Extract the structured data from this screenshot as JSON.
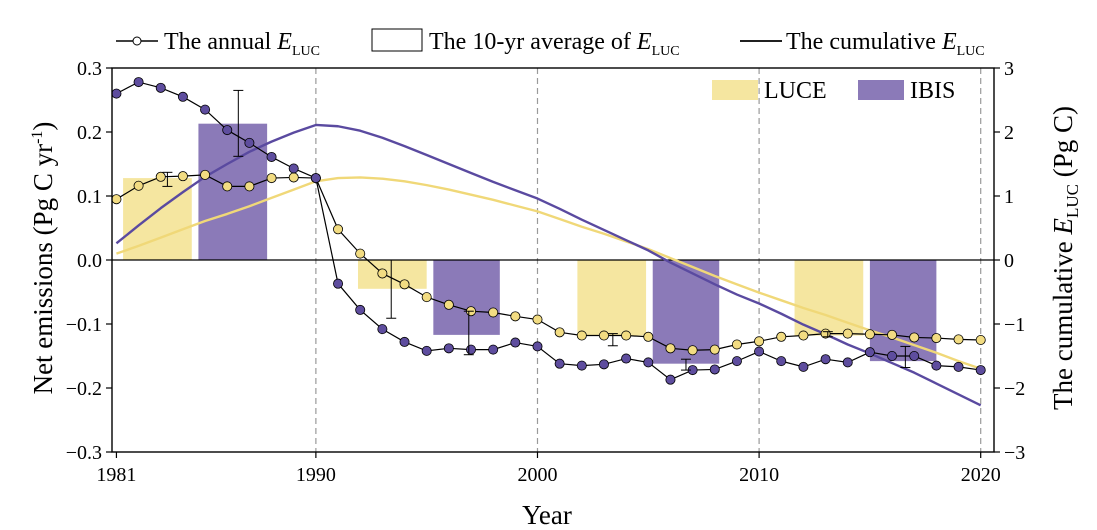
{
  "chart_data": {
    "type": "bar+line",
    "xlabel": "Year",
    "ylabel_left": {
      "main": "Net emissions (Pg C yr",
      "sup": "-1",
      "end": ")"
    },
    "ylabel_right": {
      "prefix": "The cumulative ",
      "symbol": "E",
      "sub": "LUC",
      "suffix": " (Pg C)"
    },
    "ylim_left": [
      -0.3,
      0.3
    ],
    "ylim_right": [
      -3,
      3
    ],
    "xlim": [
      1980.8,
      2020.6
    ],
    "x_ticks": [
      1981,
      1990,
      2000,
      2010,
      2020
    ],
    "y_ticks_left": [
      "0.3",
      "0.2",
      "0.1",
      "0.0",
      "−0.1",
      "−0.2",
      "−0.3"
    ],
    "y_tick_values_left": [
      0.3,
      0.2,
      0.1,
      0.0,
      -0.1,
      -0.2,
      -0.3
    ],
    "y_ticks_right": [
      "3",
      "2",
      "1",
      "0",
      "−1",
      "−2",
      "−3"
    ],
    "y_tick_values_right": [
      3,
      2,
      1,
      0,
      -1,
      -2,
      -3
    ],
    "vertical_dashed_lines": [
      1990,
      2000,
      2010,
      2020
    ],
    "legend_top": {
      "annual": {
        "text": "The annual ",
        "symbol": "E",
        "sub": "LUC"
      },
      "avg": {
        "text": "The 10-yr average of ",
        "symbol": "E",
        "sub": "LUC"
      },
      "cum": {
        "text": "The cumulative ",
        "symbol": "E",
        "sub": "LUC"
      }
    },
    "legend_models": [
      {
        "name": "LUCE",
        "color": "#f5e6a0"
      },
      {
        "name": "IBIS",
        "color": "#8b7ab8"
      }
    ],
    "colors": {
      "luce_bar": "#f5e6a0",
      "ibis_bar": "#8b7ab8",
      "luce_line": "#f0d878",
      "ibis_line": "#5a4aa0",
      "luce_marker": "#f2dc82",
      "ibis_marker": "#5e4d9e",
      "marker_line": "#000000"
    },
    "bars": {
      "LUCE": [
        {
          "x_start": 1981.3,
          "x_end": 1984.4,
          "value": 0.128,
          "err_x": 1983.3,
          "err_low": 0.115,
          "err_high": 0.137
        },
        {
          "x_start": 1991.9,
          "x_end": 1995.0,
          "value": -0.045,
          "err_x": 1993.4,
          "err_low": -0.091,
          "err_high": 0.0
        },
        {
          "x_start": 2001.8,
          "x_end": 2004.9,
          "value": -0.118,
          "err_x": 2003.4,
          "err_low": -0.134,
          "err_high": -0.115
        },
        {
          "x_start": 2011.6,
          "x_end": 2014.7,
          "value": -0.118,
          "err_x": 2013.1,
          "err_low": -0.12,
          "err_high": -0.112
        }
      ],
      "IBIS": [
        {
          "x_start": 1984.7,
          "x_end": 1987.8,
          "value": 0.213,
          "err_x": 1986.5,
          "err_low": 0.162,
          "err_high": 0.265
        },
        {
          "x_start": 1995.3,
          "x_end": 1998.3,
          "value": -0.117,
          "err_x": 1996.9,
          "err_low": -0.148,
          "err_high": -0.08
        },
        {
          "x_start": 2005.2,
          "x_end": 2008.2,
          "value": -0.162,
          "err_x": 2006.7,
          "err_low": -0.172,
          "err_high": -0.155
        },
        {
          "x_start": 2015.0,
          "x_end": 2018.0,
          "value": -0.158,
          "err_x": 2016.6,
          "err_low": -0.168,
          "err_high": -0.135
        }
      ]
    },
    "annual_series": [
      {
        "name": "LUCE",
        "x": [
          1981,
          1982,
          1983,
          1984,
          1985,
          1986,
          1987,
          1988,
          1989,
          1990,
          1991,
          1992,
          1993,
          1994,
          1995,
          1996,
          1997,
          1998,
          1999,
          2000,
          2001,
          2002,
          2003,
          2004,
          2005,
          2006,
          2007,
          2008,
          2009,
          2010,
          2011,
          2012,
          2013,
          2014,
          2015,
          2016,
          2017,
          2018,
          2019,
          2020
        ],
        "values": [
          0.095,
          0.116,
          0.13,
          0.131,
          0.133,
          0.115,
          0.115,
          0.128,
          0.129,
          0.128,
          0.048,
          0.01,
          -0.021,
          -0.038,
          -0.058,
          -0.07,
          -0.08,
          -0.082,
          -0.088,
          -0.093,
          -0.113,
          -0.118,
          -0.118,
          -0.118,
          -0.12,
          -0.138,
          -0.141,
          -0.14,
          -0.132,
          -0.127,
          -0.12,
          -0.118,
          -0.115,
          -0.115,
          -0.116,
          -0.117,
          -0.121,
          -0.122,
          -0.124,
          -0.125
        ]
      },
      {
        "name": "IBIS",
        "x": [
          1981,
          1982,
          1983,
          1984,
          1985,
          1986,
          1987,
          1988,
          1989,
          1990,
          1991,
          1992,
          1993,
          1994,
          1995,
          1996,
          1997,
          1998,
          1999,
          2000,
          2001,
          2002,
          2003,
          2004,
          2005,
          2006,
          2007,
          2008,
          2009,
          2010,
          2011,
          2012,
          2013,
          2014,
          2015,
          2016,
          2017,
          2018,
          2019,
          2020
        ],
        "values": [
          0.26,
          0.278,
          0.269,
          0.255,
          0.235,
          0.203,
          0.183,
          0.161,
          0.143,
          0.128,
          -0.037,
          -0.078,
          -0.108,
          -0.128,
          -0.142,
          -0.138,
          -0.14,
          -0.14,
          -0.129,
          -0.135,
          -0.162,
          -0.165,
          -0.163,
          -0.154,
          -0.16,
          -0.187,
          -0.172,
          -0.171,
          -0.158,
          -0.143,
          -0.158,
          -0.167,
          -0.155,
          -0.16,
          -0.144,
          -0.15,
          -0.15,
          -0.165,
          -0.167,
          -0.172
        ]
      }
    ],
    "cumulative_series": [
      {
        "name": "LUCE",
        "x": [
          1981,
          1982,
          1983,
          1984,
          1985,
          1986,
          1987,
          1988,
          1989,
          1990,
          1991,
          1992,
          1993,
          1994,
          1995,
          1996,
          1997,
          1998,
          1999,
          2000,
          2001,
          2002,
          2003,
          2004,
          2005,
          2006,
          2007,
          2008,
          2009,
          2010,
          2011,
          2012,
          2013,
          2014,
          2015,
          2016,
          2017,
          2018,
          2019,
          2020
        ],
        "values": [
          0.1,
          0.22,
          0.35,
          0.48,
          0.61,
          0.72,
          0.84,
          0.97,
          1.1,
          1.23,
          1.28,
          1.29,
          1.27,
          1.23,
          1.17,
          1.1,
          1.02,
          0.94,
          0.85,
          0.76,
          0.64,
          0.52,
          0.41,
          0.29,
          0.17,
          0.03,
          -0.11,
          -0.25,
          -0.38,
          -0.51,
          -0.63,
          -0.75,
          -0.86,
          -0.98,
          -1.1,
          -1.21,
          -1.33,
          -1.45,
          -1.58,
          -1.7
        ]
      },
      {
        "name": "IBIS",
        "x": [
          1981,
          1982,
          1983,
          1984,
          1985,
          1986,
          1987,
          1988,
          1989,
          1990,
          1991,
          1992,
          1993,
          1994,
          1995,
          1996,
          1997,
          1998,
          1999,
          2000,
          2001,
          2002,
          2003,
          2004,
          2005,
          2006,
          2007,
          2008,
          2009,
          2010,
          2011,
          2012,
          2013,
          2014,
          2015,
          2016,
          2017,
          2018,
          2019,
          2020
        ],
        "values": [
          0.26,
          0.54,
          0.81,
          1.06,
          1.3,
          1.5,
          1.69,
          1.85,
          1.99,
          2.11,
          2.09,
          2.02,
          1.91,
          1.78,
          1.64,
          1.5,
          1.36,
          1.22,
          1.09,
          0.96,
          0.8,
          0.63,
          0.47,
          0.31,
          0.15,
          -0.04,
          -0.21,
          -0.38,
          -0.54,
          -0.68,
          -0.84,
          -1.01,
          -1.16,
          -1.32,
          -1.46,
          -1.61,
          -1.76,
          -1.93,
          -2.1,
          -2.27
        ]
      }
    ]
  }
}
